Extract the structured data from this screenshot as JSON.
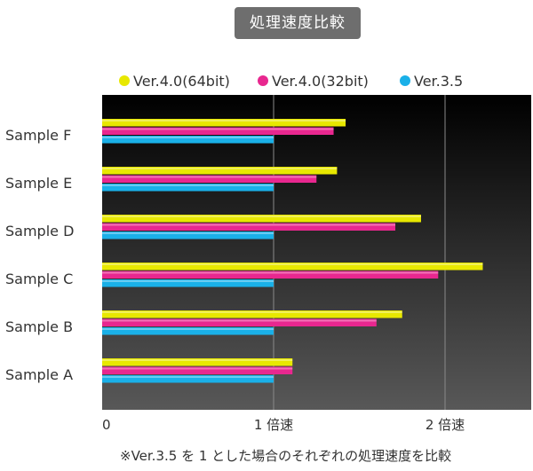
{
  "chart_data": {
    "type": "bar",
    "orientation": "horizontal",
    "title": "処理速度比較",
    "categories": [
      "Sample F",
      "Sample E",
      "Sample D",
      "Sample C",
      "Sample B",
      "Sample A"
    ],
    "series": [
      {
        "name": "Ver.4.0(64bit)",
        "color": "#e8e800",
        "values": [
          1.42,
          1.37,
          1.86,
          2.22,
          1.75,
          1.11
        ]
      },
      {
        "name": "Ver.4.0(32bit)",
        "color": "#e8278f",
        "values": [
          1.35,
          1.25,
          1.71,
          1.96,
          1.6,
          1.11
        ]
      },
      {
        "name": "Ver.3.5",
        "color": "#1ab0e8",
        "values": [
          1.0,
          1.0,
          1.0,
          1.0,
          1.0,
          1.0
        ]
      }
    ],
    "x_ticks": [
      {
        "value": 0,
        "label": "0"
      },
      {
        "value": 1,
        "label": "1 倍速"
      },
      {
        "value": 2,
        "label": "2 倍速"
      }
    ],
    "xlim": [
      0,
      2.5
    ],
    "grid": true,
    "legend_position": "top",
    "footnote": "※Ver.3.5 を 1 とした場合のそれぞれの処理速度を比較",
    "plot_background": "dark gradient"
  }
}
